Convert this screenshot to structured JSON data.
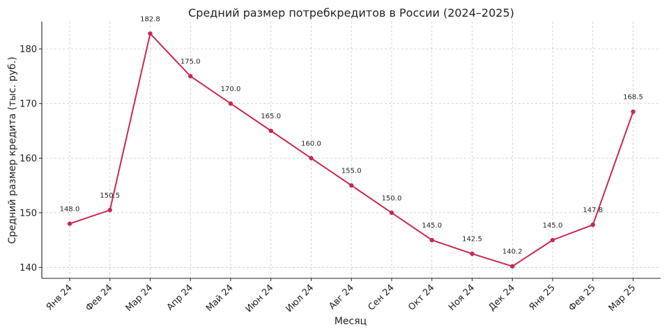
{
  "chart_data": {
    "type": "line",
    "title": "Средний размер потребкредитов в России (2024–2025)",
    "xlabel": "Месяц",
    "ylabel": "Средний размер кредита (тыс. руб.)",
    "categories": [
      "Янв 24",
      "Фев 24",
      "Мар 24",
      "Апр 24",
      "Май 24",
      "Июн 24",
      "Июл 24",
      "Авг 24",
      "Сен 24",
      "Окт 24",
      "Ноя 24",
      "Дек 24",
      "Янв 25",
      "Фев 25",
      "Мар 25"
    ],
    "series": [
      {
        "values": [
          148.0,
          150.5,
          182.8,
          175.0,
          170.0,
          165.0,
          160.0,
          155.0,
          150.0,
          145.0,
          142.5,
          140.2,
          145.0,
          147.8,
          168.5
        ],
        "labels": [
          "148.0",
          "150.5",
          "182.8",
          "175.0",
          "170.0",
          "165.0",
          "160.0",
          "155.0",
          "150.0",
          "145.0",
          "142.5",
          "140.2",
          "145.0",
          "147.8",
          "168.5"
        ],
        "color": "#c8294f"
      }
    ],
    "ylim": [
      138,
      185
    ],
    "yticks": [
      140,
      150,
      160,
      170,
      180
    ],
    "grid": true,
    "legend": "none"
  }
}
